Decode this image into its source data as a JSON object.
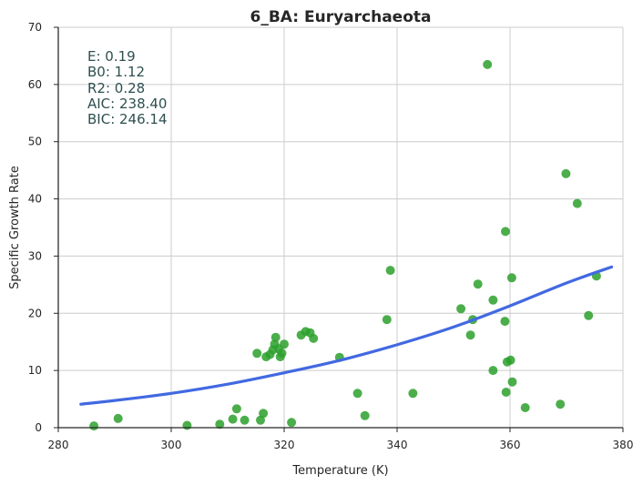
{
  "chart_data": {
    "type": "scatter",
    "title": "6_BA: Euryarchaeota",
    "xlabel": "Temperature (K)",
    "ylabel": "Specific Growth Rate",
    "xlim": [
      280,
      380
    ],
    "ylim": [
      0,
      70
    ],
    "xticks": [
      "280",
      "300",
      "320",
      "340",
      "360",
      "380"
    ],
    "yticks": [
      "0",
      "10",
      "20",
      "30",
      "40",
      "50",
      "60",
      "70"
    ],
    "grid": true,
    "point_color": "#2ca02c",
    "line_color": "#4169E1",
    "stats": [
      "E:  0.19",
      "B0:  1.12",
      "R2:  0.28",
      "AIC: 238.40",
      "BIC: 246.14"
    ],
    "points": [
      [
        286.3,
        0.3
      ],
      [
        290.6,
        1.6
      ],
      [
        302.8,
        0.4
      ],
      [
        308.6,
        0.6
      ],
      [
        310.9,
        1.5
      ],
      [
        311.6,
        3.3
      ],
      [
        313.0,
        1.3
      ],
      [
        315.2,
        13.0
      ],
      [
        315.8,
        1.3
      ],
      [
        316.3,
        2.5
      ],
      [
        316.8,
        12.4
      ],
      [
        317.5,
        12.8
      ],
      [
        318.0,
        13.6
      ],
      [
        318.3,
        14.6
      ],
      [
        318.5,
        15.8
      ],
      [
        319.0,
        13.8
      ],
      [
        319.3,
        12.4
      ],
      [
        319.6,
        13.0
      ],
      [
        320.0,
        14.6
      ],
      [
        321.3,
        0.9
      ],
      [
        323.0,
        16.2
      ],
      [
        323.8,
        16.8
      ],
      [
        324.6,
        16.6
      ],
      [
        325.2,
        15.6
      ],
      [
        329.8,
        12.3
      ],
      [
        333.0,
        6.0
      ],
      [
        334.3,
        2.1
      ],
      [
        338.2,
        18.9
      ],
      [
        338.8,
        27.5
      ],
      [
        342.8,
        6.0
      ],
      [
        351.3,
        20.8
      ],
      [
        353.0,
        16.2
      ],
      [
        353.4,
        18.9
      ],
      [
        354.3,
        25.1
      ],
      [
        356.0,
        63.5
      ],
      [
        357.0,
        22.3
      ],
      [
        357.0,
        10.0
      ],
      [
        359.1,
        18.6
      ],
      [
        359.2,
        34.3
      ],
      [
        359.3,
        6.2
      ],
      [
        359.5,
        11.5
      ],
      [
        360.1,
        11.8
      ],
      [
        360.3,
        26.2
      ],
      [
        360.4,
        8.0
      ],
      [
        362.7,
        3.5
      ],
      [
        368.9,
        4.1
      ],
      [
        369.9,
        44.4
      ],
      [
        371.9,
        39.2
      ],
      [
        373.9,
        19.6
      ],
      [
        375.3,
        26.5
      ]
    ],
    "fit_curve": {
      "x": [
        284,
        290,
        300,
        310,
        320,
        330,
        340,
        350,
        360,
        370,
        378
      ],
      "y": [
        4.1,
        4.75,
        6.0,
        7.6,
        9.6,
        11.8,
        14.5,
        17.6,
        21.3,
        25.3,
        28.1
      ]
    }
  }
}
